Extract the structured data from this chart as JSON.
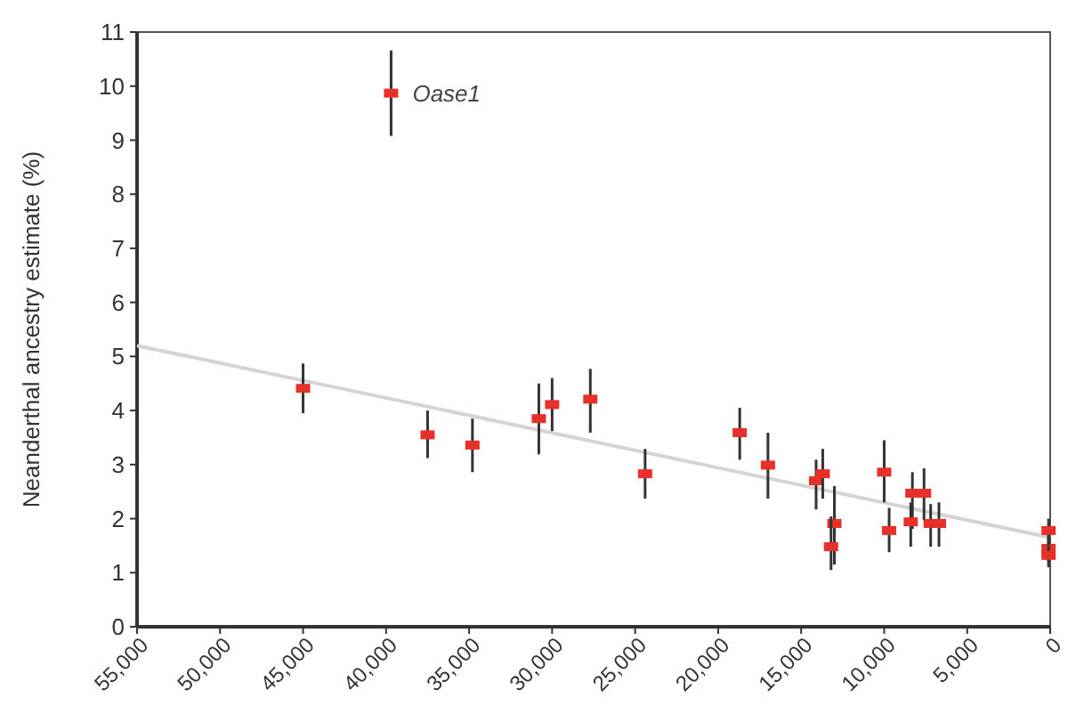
{
  "chart_data": {
    "type": "scatter",
    "ylabel": "Neanderthal ancestry estimate (%)",
    "xlim": [
      55000,
      0
    ],
    "xticks": [
      {
        "value": 55000,
        "label": "55,000"
      },
      {
        "value": 50000,
        "label": "50,000"
      },
      {
        "value": 45000,
        "label": "45,000"
      },
      {
        "value": 40000,
        "label": "40,000"
      },
      {
        "value": 35000,
        "label": "35,000"
      },
      {
        "value": 30000,
        "label": "30,000"
      },
      {
        "value": 25000,
        "label": "25,000"
      },
      {
        "value": 20000,
        "label": "20,000"
      },
      {
        "value": 15000,
        "label": "15,000"
      },
      {
        "value": 10000,
        "label": "10,000"
      },
      {
        "value": 5000,
        "label": "5,000"
      },
      0
    ],
    "ylim": [
      0,
      11
    ],
    "yticks": [
      0,
      1,
      2,
      3,
      4,
      5,
      6,
      7,
      8,
      9,
      10,
      11
    ],
    "grid": false,
    "series": [
      {
        "color": "#e8302a",
        "marker": "square",
        "x": [
          39700,
          45000,
          37500,
          34800,
          30800,
          30000,
          27700,
          24400,
          18700,
          17000,
          14100,
          13700,
          13000,
          13200,
          10000,
          9700,
          8300,
          7600,
          8400,
          7200,
          6700,
          100,
          100,
          100
        ],
        "values": [
          9.87,
          4.41,
          3.55,
          3.36,
          3.85,
          4.11,
          4.21,
          2.83,
          3.59,
          2.99,
          2.7,
          2.83,
          1.91,
          1.48,
          2.86,
          1.78,
          2.47,
          2.47,
          1.94,
          1.91,
          1.91,
          1.78,
          1.45,
          1.32
        ],
        "errors": [
          [
            9.08,
            10.66
          ],
          [
            3.95,
            4.87
          ],
          [
            3.12,
            4.0
          ],
          [
            2.86,
            3.85
          ],
          [
            3.19,
            4.5
          ],
          [
            3.62,
            4.6
          ],
          [
            3.59,
            4.77
          ],
          [
            2.37,
            3.29
          ],
          [
            3.09,
            4.05
          ],
          [
            2.37,
            3.59
          ],
          [
            2.17,
            3.09
          ],
          [
            2.37,
            3.29
          ],
          [
            1.15,
            2.6
          ],
          [
            1.05,
            2.04
          ],
          [
            2.3,
            3.45
          ],
          [
            1.38,
            2.2
          ],
          [
            1.81,
            2.86
          ],
          [
            1.97,
            2.93
          ],
          [
            1.48,
            2.3
          ],
          [
            1.48,
            2.27
          ],
          [
            1.48,
            2.3
          ],
          [
            1.55,
            2.0
          ],
          [
            1.2,
            1.7
          ],
          [
            1.1,
            1.55
          ]
        ]
      },
      {
        "type": "line",
        "color": "#d4d4d4",
        "x": [
          55000,
          0
        ],
        "values": [
          5.2,
          1.65
        ]
      }
    ],
    "annotations": [
      {
        "text": "Oase1",
        "x": 39700,
        "y": 9.87
      }
    ]
  }
}
